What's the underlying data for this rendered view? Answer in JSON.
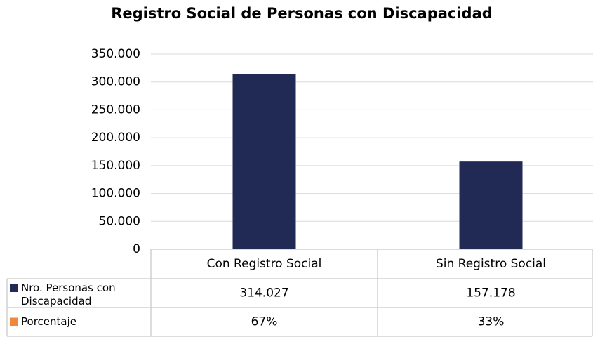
{
  "chart_data": {
    "type": "bar",
    "title": "Registro Social de Personas con Discapacidad",
    "categories": [
      "Con Registro Social",
      "Sin Registro Social"
    ],
    "series": [
      {
        "name": "Nro. Personas con Discapacidad",
        "color": "#202a55",
        "values": [
          314027,
          157178
        ],
        "value_labels": [
          "314.027",
          "157.178"
        ]
      },
      {
        "name": "Porcentaje",
        "color": "#f0873a",
        "values": [
          67,
          33
        ],
        "value_labels": [
          "67%",
          "33%"
        ]
      }
    ],
    "ylim": [
      0,
      350000
    ],
    "yticks": [
      0,
      {
        "value": 50000,
        "label": "50.000"
      },
      {
        "value": 100000,
        "label": "100.000"
      },
      {
        "value": 150000,
        "label": "150.000"
      },
      {
        "value": 200000,
        "label": "200.000"
      },
      {
        "value": 250000,
        "label": "250.000"
      },
      {
        "value": 300000,
        "label": "300.000"
      },
      {
        "value": 350000,
        "label": "350.000"
      }
    ],
    "grid": true
  }
}
